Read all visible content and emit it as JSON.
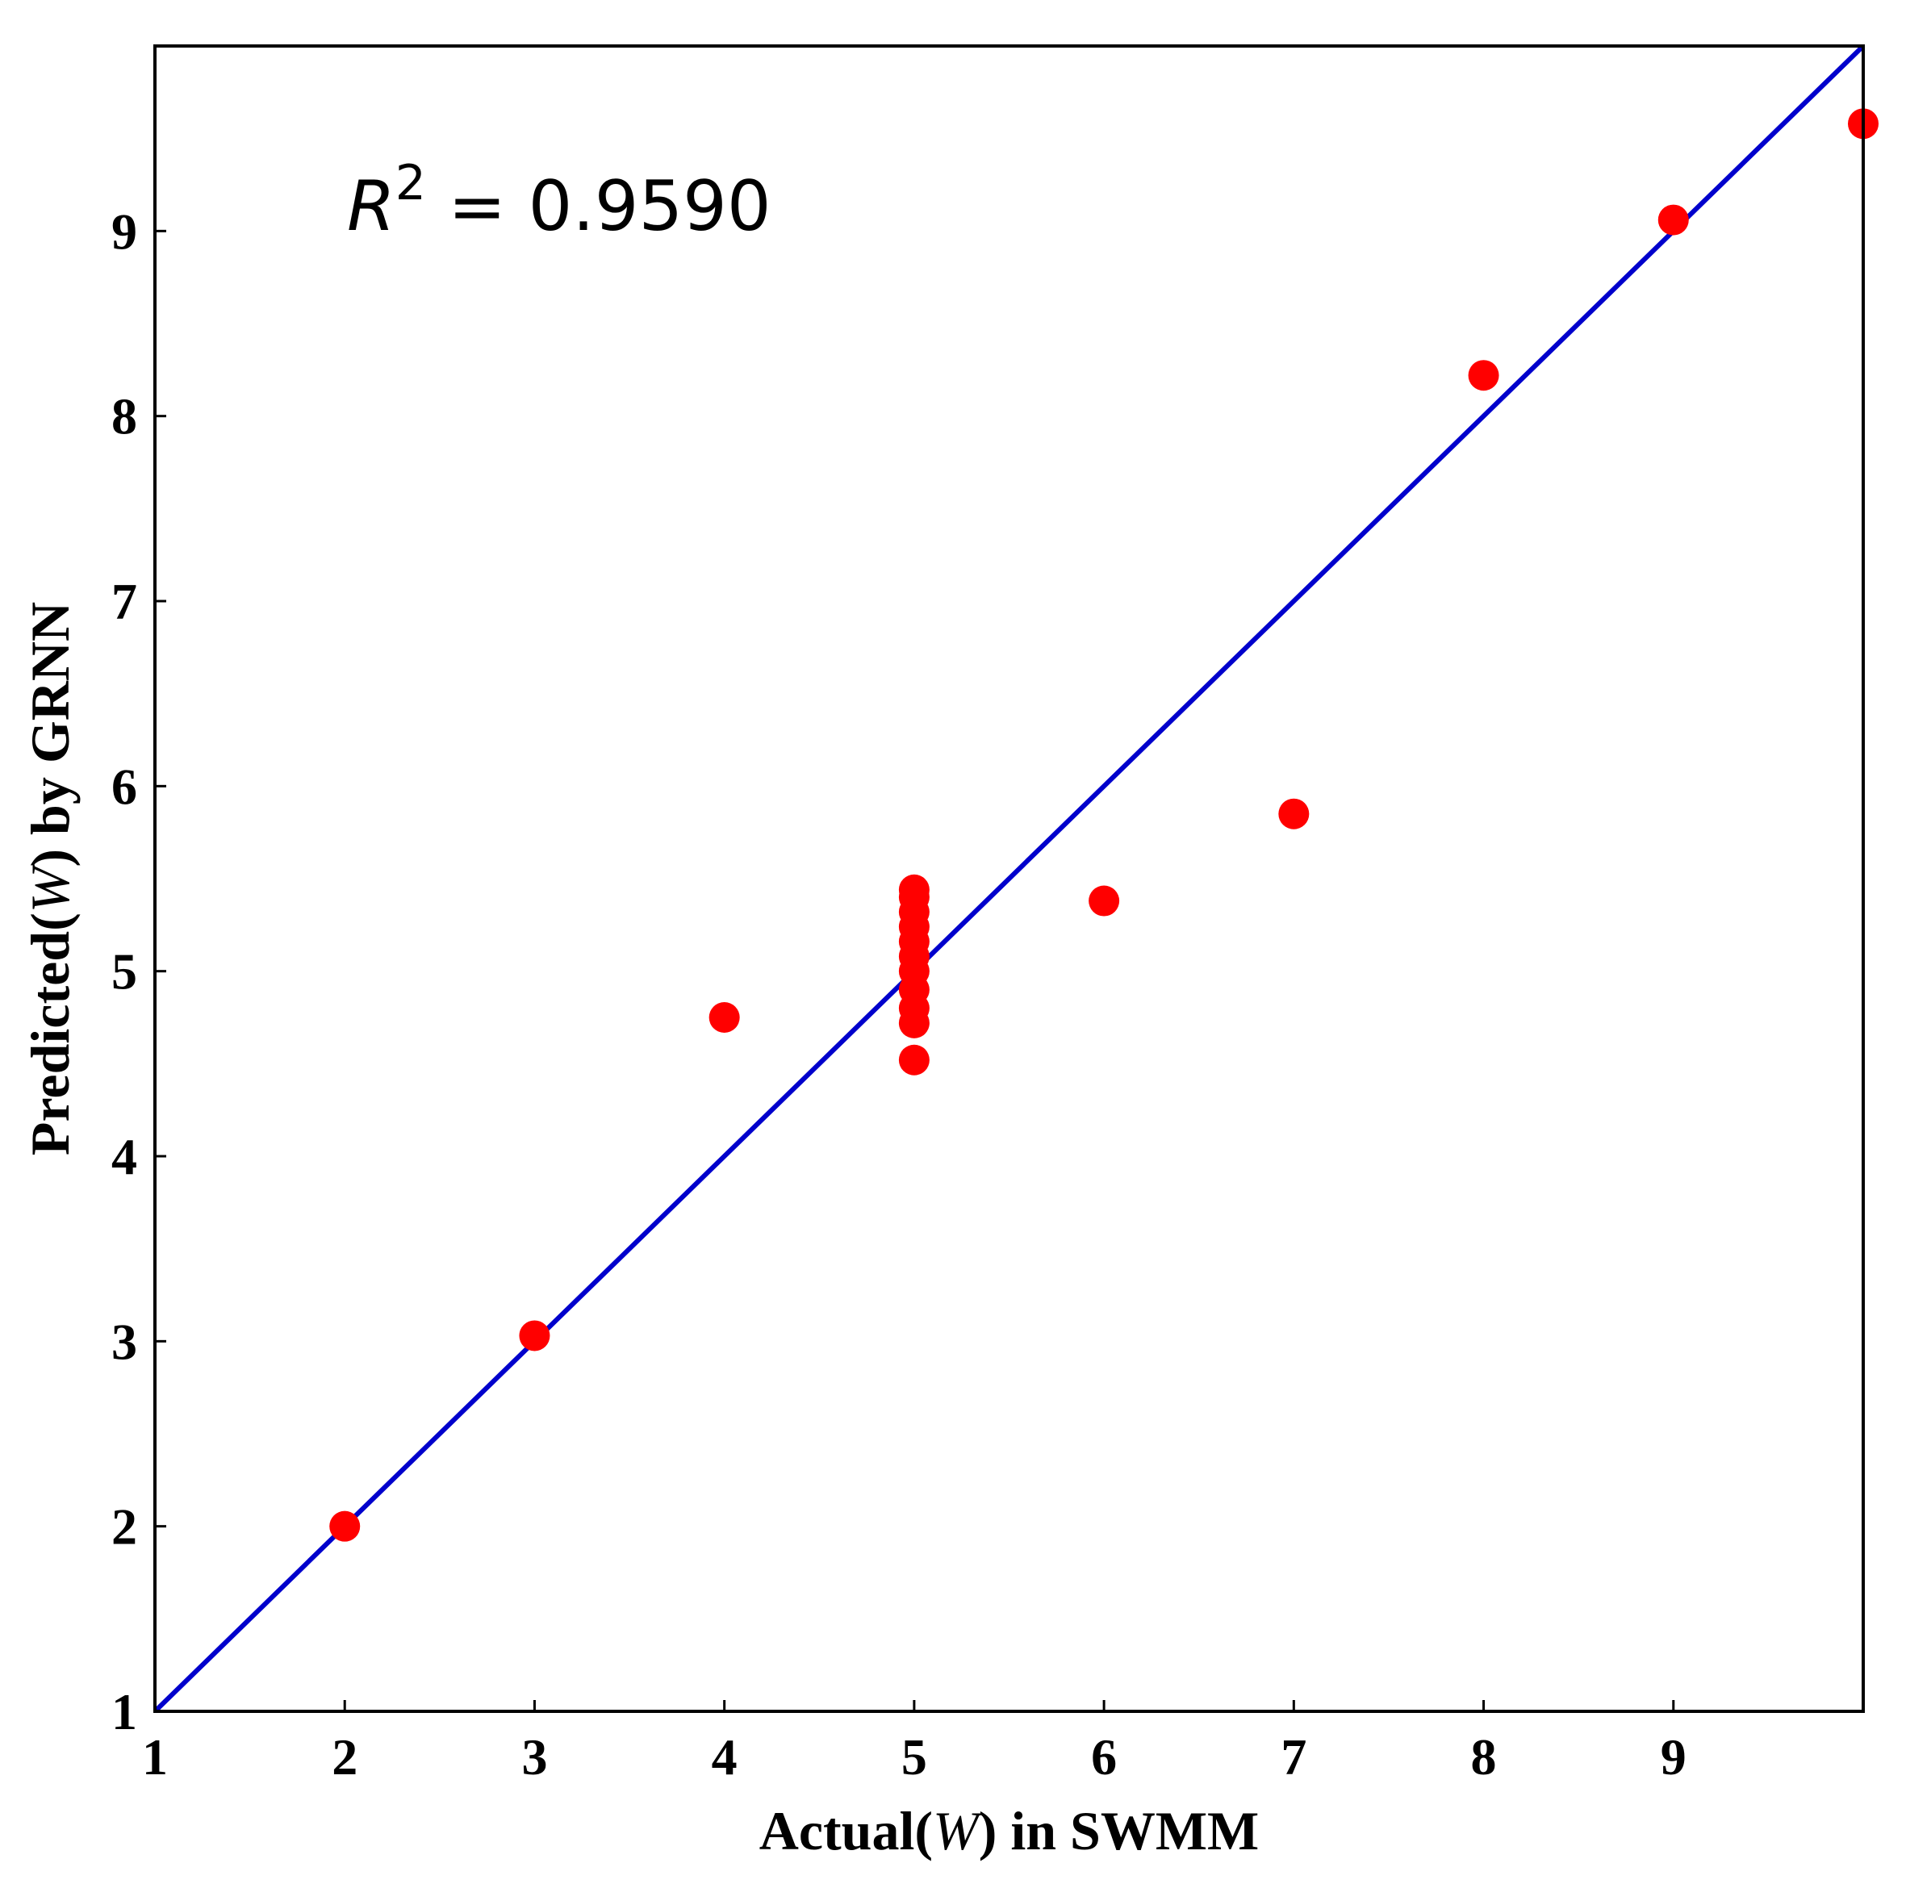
{
  "chart_data": {
    "type": "scatter",
    "title": "",
    "xlabel": {
      "prefix": "Actual(",
      "var": "W",
      "suffix": ") in SWMM"
    },
    "ylabel": {
      "prefix": "Predicted(",
      "var": "W",
      "suffix": ") by GRNN"
    },
    "xlim": [
      1,
      10
    ],
    "ylim": [
      1,
      10
    ],
    "xticks": [
      1,
      2,
      3,
      4,
      5,
      6,
      7,
      8,
      9
    ],
    "yticks": [
      1,
      2,
      3,
      4,
      5,
      6,
      7,
      8,
      9
    ],
    "grid": false,
    "series": [
      {
        "name": "predictions",
        "kind": "points",
        "color": "#ff0000",
        "points": [
          [
            2,
            2.0
          ],
          [
            3,
            3.03
          ],
          [
            4,
            4.75
          ],
          [
            5,
            4.52
          ],
          [
            5,
            4.72
          ],
          [
            5,
            4.8
          ],
          [
            5,
            4.9
          ],
          [
            5,
            5.0
          ],
          [
            5,
            5.08
          ],
          [
            5,
            5.16
          ],
          [
            5,
            5.24
          ],
          [
            5,
            5.32
          ],
          [
            5,
            5.4
          ],
          [
            5,
            5.44
          ],
          [
            6,
            5.38
          ],
          [
            7,
            5.85
          ],
          [
            8,
            8.22
          ],
          [
            9,
            9.06
          ],
          [
            10,
            9.58
          ]
        ]
      },
      {
        "name": "1:1 line",
        "kind": "line",
        "color": "#0000cc",
        "points": [
          [
            1,
            1
          ],
          [
            10,
            10
          ]
        ]
      }
    ],
    "annotation": {
      "var": "R",
      "sup": "2",
      "text": " = 0.9590"
    }
  }
}
